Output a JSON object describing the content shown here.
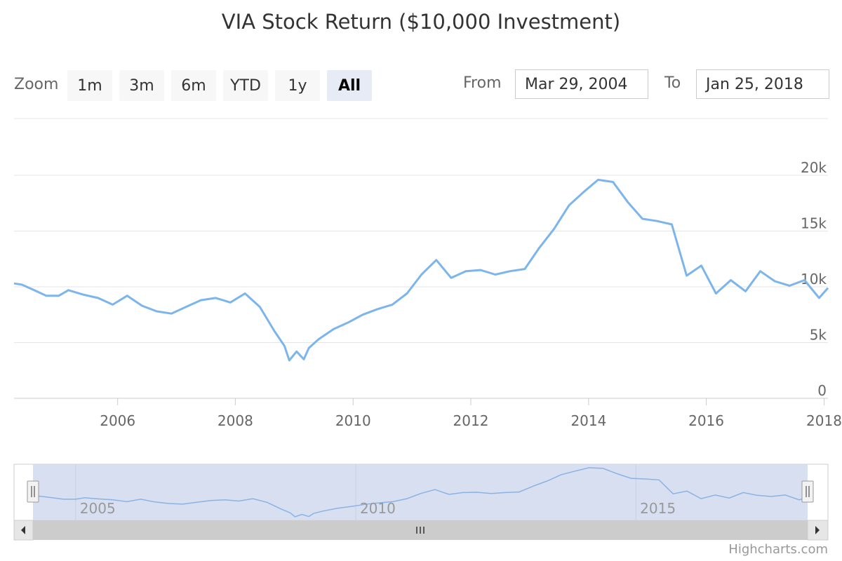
{
  "title": "VIA Stock Return ($10,000 Investment)",
  "zoom": {
    "label": "Zoom",
    "buttons": [
      "1m",
      "3m",
      "6m",
      "YTD",
      "1y",
      "All"
    ],
    "active": "All"
  },
  "range": {
    "from_label": "From",
    "from_value": "Mar 29, 2004",
    "to_label": "To",
    "to_value": "Jan 25, 2018"
  },
  "credits": "Highcharts.com",
  "colors": {
    "line": "#7cb5ec",
    "navigator_fill": "#d3dcf0",
    "navigator_line": "#8ab3e4",
    "grid": "#e6e6e6",
    "active_button": "#e6ebf5"
  },
  "chart_data": {
    "type": "line",
    "title": "VIA Stock Return ($10,000 Investment)",
    "xlabel": "",
    "ylabel": "",
    "x_range": [
      "2004-03-29",
      "2018-01-25"
    ],
    "ylim": [
      0,
      20000
    ],
    "y_ticks": [
      0,
      5000,
      10000,
      15000,
      20000
    ],
    "y_tick_labels": [
      "0",
      "5k",
      "10k",
      "15k",
      "20k"
    ],
    "x_ticks": [
      "2006",
      "2008",
      "2010",
      "2012",
      "2014",
      "2016",
      "2018"
    ],
    "navigator_ticks": [
      "2005",
      "2010",
      "2015"
    ],
    "grid": true,
    "series": [
      {
        "x": [
          "2004-03-29",
          "2004-05-15",
          "2004-08-01",
          "2004-10-15",
          "2005-01-01",
          "2005-03-01",
          "2005-06-01",
          "2005-09-01",
          "2005-12-01",
          "2006-03-01",
          "2006-06-01",
          "2006-09-01",
          "2006-12-01",
          "2007-03-01",
          "2007-06-01",
          "2007-09-01",
          "2007-12-01",
          "2008-03-01",
          "2008-06-01",
          "2008-09-01",
          "2008-11-01",
          "2008-12-01",
          "2009-01-15",
          "2009-03-01",
          "2009-04-01",
          "2009-06-01",
          "2009-09-01",
          "2009-12-01",
          "2010-03-01",
          "2010-06-01",
          "2010-09-01",
          "2010-12-01",
          "2011-03-01",
          "2011-06-01",
          "2011-09-01",
          "2011-12-01",
          "2012-03-01",
          "2012-06-01",
          "2012-09-01",
          "2012-12-01",
          "2013-03-01",
          "2013-06-01",
          "2013-09-01",
          "2013-12-01",
          "2014-03-01",
          "2014-06-01",
          "2014-09-01",
          "2014-12-01",
          "2015-03-01",
          "2015-06-01",
          "2015-09-01",
          "2015-12-01",
          "2016-03-01",
          "2016-06-01",
          "2016-09-01",
          "2016-12-01",
          "2017-03-01",
          "2017-06-01",
          "2017-09-01",
          "2017-12-01",
          "2018-01-25"
        ],
        "values": [
          10300,
          10200,
          9700,
          9200,
          9200,
          9700,
          9300,
          9000,
          8400,
          9200,
          8300,
          7800,
          7600,
          8200,
          8800,
          9000,
          8600,
          9400,
          8200,
          6000,
          4700,
          3400,
          4200,
          3500,
          4500,
          5300,
          6200,
          6800,
          7500,
          8000,
          8400,
          9400,
          11100,
          12400,
          10800,
          11400,
          11500,
          11100,
          11400,
          11600,
          13500,
          15200,
          17300,
          18500,
          19600,
          19400,
          17600,
          16100,
          15900,
          15600,
          11000,
          11900,
          9400,
          10600,
          9600,
          11400,
          10500,
          10100,
          10600,
          9000,
          9900
        ]
      }
    ]
  }
}
